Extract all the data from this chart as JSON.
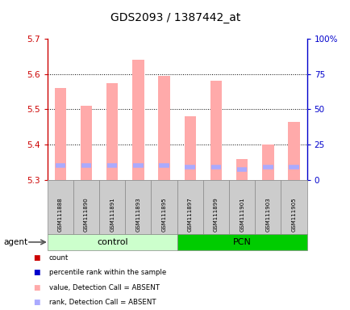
{
  "title": "GDS2093 / 1387442_at",
  "samples": [
    "GSM111888",
    "GSM111890",
    "GSM111891",
    "GSM111893",
    "GSM111895",
    "GSM111897",
    "GSM111899",
    "GSM111901",
    "GSM111903",
    "GSM111905"
  ],
  "groups": [
    "control",
    "control",
    "control",
    "control",
    "control",
    "PCN",
    "PCN",
    "PCN",
    "PCN",
    "PCN"
  ],
  "bar_top_values": [
    5.56,
    5.51,
    5.575,
    5.64,
    5.595,
    5.48,
    5.58,
    5.36,
    5.4,
    5.465
  ],
  "bar_bottom": 5.3,
  "rank_marker_values": [
    5.34,
    5.34,
    5.34,
    5.34,
    5.34,
    5.335,
    5.335,
    5.33,
    5.335,
    5.335
  ],
  "ylim": [
    5.3,
    5.7
  ],
  "yticks": [
    5.3,
    5.4,
    5.5,
    5.6,
    5.7
  ],
  "right_yticks": [
    0,
    25,
    50,
    75,
    100
  ],
  "right_ytick_labels": [
    "0",
    "25",
    "50",
    "75",
    "100%"
  ],
  "bar_width": 0.45,
  "bar_color": "#ffaaaa",
  "rank_color": "#aaaaff",
  "left_axis_color": "#cc0000",
  "right_axis_color": "#0000cc",
  "control_color_light": "#ccffcc",
  "control_color": "#88ee88",
  "pcn_color": "#00cc00",
  "sample_box_color": "#cccccc",
  "legend_colors": [
    "#cc0000",
    "#0000cc",
    "#ffaaaa",
    "#aaaaff"
  ],
  "legend_labels": [
    "count",
    "percentile rank within the sample",
    "value, Detection Call = ABSENT",
    "rank, Detection Call = ABSENT"
  ]
}
